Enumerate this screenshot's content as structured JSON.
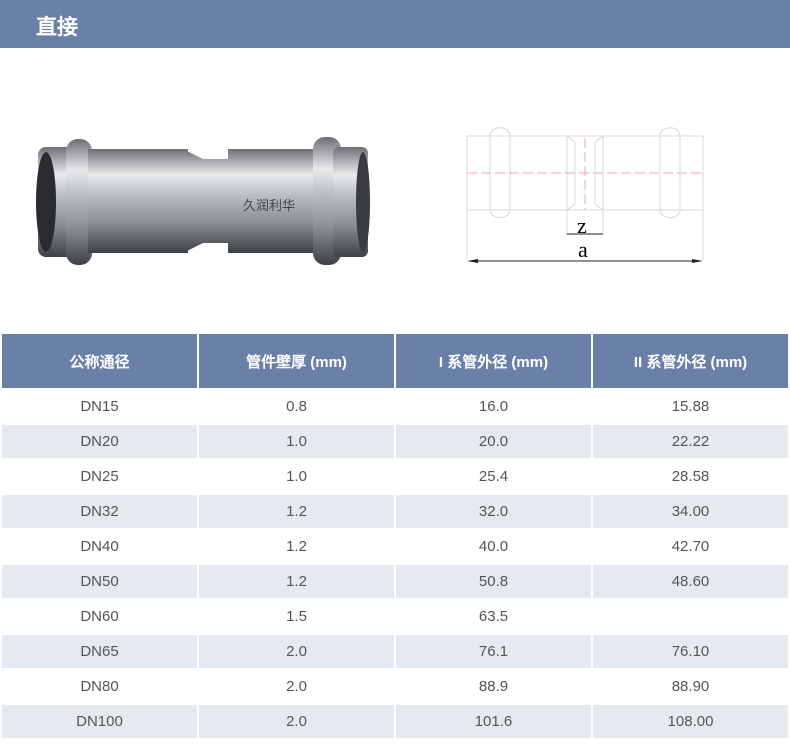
{
  "header": {
    "title": "直接"
  },
  "photo": {
    "logo_text": "久润利华"
  },
  "drawing": {
    "label_z": "z",
    "label_a": "a"
  },
  "table": {
    "headers": [
      "公称通径",
      "管件壁厚 (mm)",
      "I 系管外径 (mm)",
      "II 系管外径 (mm)"
    ],
    "rows": [
      [
        "DN15",
        "0.8",
        "16.0",
        "15.88"
      ],
      [
        "DN20",
        "1.0",
        "20.0",
        "22.22"
      ],
      [
        "DN25",
        "1.0",
        "25.4",
        "28.58"
      ],
      [
        "DN32",
        "1.2",
        "32.0",
        "34.00"
      ],
      [
        "DN40",
        "1.2",
        "40.0",
        "42.70"
      ],
      [
        "DN50",
        "1.2",
        "50.8",
        "48.60"
      ],
      [
        "DN60",
        "1.5",
        "63.5",
        ""
      ],
      [
        "DN65",
        "2.0",
        "76.1",
        "76.10"
      ],
      [
        "DN80",
        "2.0",
        "88.9",
        "88.90"
      ],
      [
        "DN100",
        "2.0",
        "101.6",
        "108.00"
      ]
    ]
  },
  "colors": {
    "accent": "#6a80a6",
    "row_alt": "#e5eaf1"
  }
}
